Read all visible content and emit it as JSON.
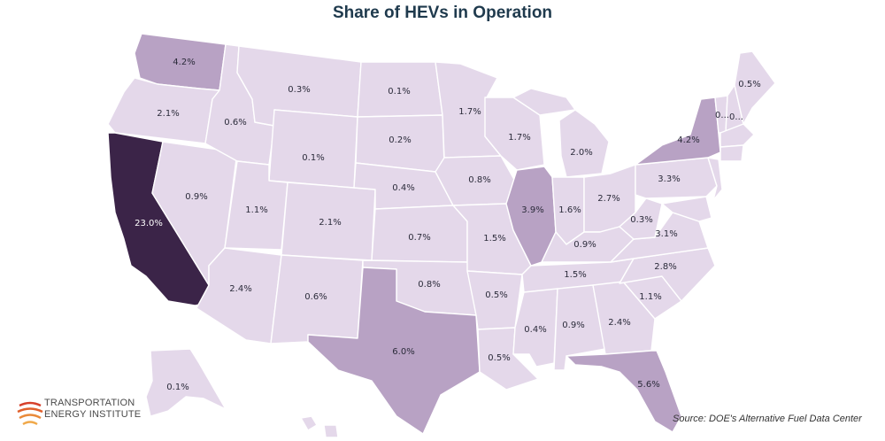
{
  "title": "Share of HEVs in Operation",
  "source": "Source:  DOE's Alternative Fuel Data Center",
  "logo": {
    "line1": "TRANSPORTATION",
    "line2": "ENERGY INSTITUTE"
  },
  "colors": {
    "low": "#e4d8ea",
    "mid": "#b8a2c4",
    "high": "#3b2448",
    "label": "#2b2b3a"
  },
  "states": {
    "wa": "4.2%",
    "or": "2.1%",
    "ca": "23.0%",
    "nv": "0.9%",
    "id": "0.6%",
    "mt": "0.3%",
    "wy": "0.1%",
    "ut": "1.1%",
    "az": "2.4%",
    "co": "2.1%",
    "nm": "0.6%",
    "nd": "0.1%",
    "sd": "0.2%",
    "ne": "0.4%",
    "ks": "0.7%",
    "ok": "0.8%",
    "tx": "6.0%",
    "mn": "1.7%",
    "ia": "0.8%",
    "mo": "1.5%",
    "ar": "0.5%",
    "la": "0.5%",
    "wi": "1.7%",
    "il": "3.9%",
    "mi": "2.0%",
    "in": "1.6%",
    "oh": "2.7%",
    "ky": "0.9%",
    "tn": "1.5%",
    "ms": "0.4%",
    "al": "0.9%",
    "ga": "2.4%",
    "fl": "5.6%",
    "sc": "1.1%",
    "nc": "2.8%",
    "va": "3.1%",
    "wv": "0.3%",
    "pa": "3.3%",
    "ny": "4.2%",
    "me": "0.5%",
    "vt": "0...",
    "nh": "0...",
    "ak": "0.1%"
  }
}
